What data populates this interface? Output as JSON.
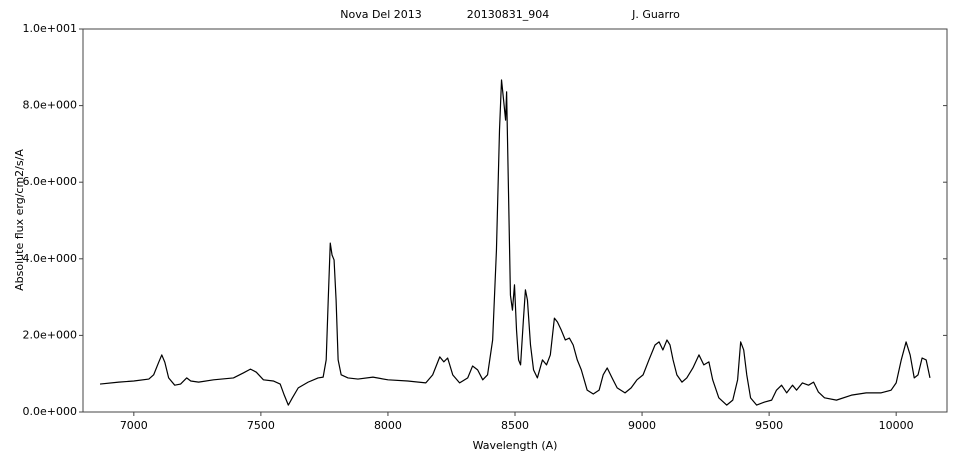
{
  "chart_data": {
    "type": "line",
    "title": "Nova Del 2013",
    "subtitle": "20130831_904",
    "author": "J. Guarro",
    "x_label": "Wavelength (A)",
    "y_label": "Absolute flux erg/cm2/s/A",
    "x": [
      6867,
      6941,
      7000,
      7059,
      7078,
      7098,
      7110,
      7122,
      7137,
      7161,
      7184,
      7208,
      7224,
      7255,
      7314,
      7392,
      7431,
      7459,
      7482,
      7510,
      7549,
      7576,
      7592,
      7608,
      7624,
      7647,
      7686,
      7725,
      7745,
      7757,
      7765,
      7773,
      7780,
      7788,
      7796,
      7804,
      7816,
      7843,
      7882,
      7941,
      8000,
      8078,
      8149,
      8176,
      8204,
      8220,
      8235,
      8255,
      8282,
      8314,
      8333,
      8353,
      8373,
      8392,
      8412,
      8427,
      8439,
      8447,
      8455,
      8463,
      8467,
      8475,
      8482,
      8490,
      8498,
      8506,
      8514,
      8522,
      8533,
      8541,
      8549,
      8561,
      8573,
      8588,
      8608,
      8624,
      8639,
      8655,
      8667,
      8682,
      8698,
      8714,
      8729,
      8745,
      8761,
      8784,
      8808,
      8831,
      8847,
      8863,
      8882,
      8902,
      8933,
      8957,
      8980,
      9004,
      9027,
      9051,
      9067,
      9082,
      9098,
      9110,
      9122,
      9137,
      9157,
      9176,
      9200,
      9224,
      9243,
      9263,
      9278,
      9302,
      9333,
      9357,
      9376,
      9388,
      9400,
      9412,
      9427,
      9451,
      9482,
      9510,
      9529,
      9549,
      9569,
      9592,
      9608,
      9631,
      9655,
      9675,
      9694,
      9718,
      9765,
      9824,
      9882,
      9941,
      9980,
      10000,
      10020,
      10039,
      10055,
      10071,
      10086,
      10102,
      10118,
      10133
    ],
    "series": [
      {
        "name": "spectrum",
        "color": "#000000",
        "values": [
          0.73,
          0.78,
          0.81,
          0.86,
          0.97,
          1.3,
          1.49,
          1.3,
          0.89,
          0.7,
          0.73,
          0.89,
          0.81,
          0.78,
          0.84,
          0.89,
          1.02,
          1.12,
          1.04,
          0.84,
          0.81,
          0.73,
          0.44,
          0.18,
          0.37,
          0.63,
          0.78,
          0.89,
          0.91,
          1.36,
          2.92,
          4.41,
          4.1,
          3.97,
          2.92,
          1.36,
          0.97,
          0.89,
          0.86,
          0.91,
          0.84,
          0.81,
          0.76,
          0.97,
          1.44,
          1.31,
          1.41,
          0.97,
          0.76,
          0.89,
          1.2,
          1.1,
          0.84,
          0.97,
          1.88,
          4.23,
          7.36,
          8.67,
          8.15,
          7.62,
          8.36,
          5.54,
          3.05,
          2.66,
          3.32,
          2.14,
          1.36,
          1.23,
          2.4,
          3.19,
          2.92,
          1.75,
          1.1,
          0.89,
          1.36,
          1.23,
          1.49,
          2.45,
          2.35,
          2.14,
          1.88,
          1.93,
          1.75,
          1.36,
          1.1,
          0.57,
          0.47,
          0.57,
          0.97,
          1.15,
          0.89,
          0.63,
          0.5,
          0.63,
          0.84,
          0.97,
          1.36,
          1.75,
          1.83,
          1.62,
          1.88,
          1.75,
          1.36,
          0.97,
          0.78,
          0.89,
          1.15,
          1.49,
          1.23,
          1.31,
          0.84,
          0.37,
          0.18,
          0.31,
          0.84,
          1.83,
          1.62,
          0.97,
          0.37,
          0.18,
          0.26,
          0.31,
          0.57,
          0.7,
          0.5,
          0.7,
          0.57,
          0.76,
          0.7,
          0.78,
          0.52,
          0.37,
          0.31,
          0.44,
          0.5,
          0.5,
          0.57,
          0.76,
          1.36,
          1.83,
          1.49,
          0.89,
          0.97,
          1.41,
          1.36,
          0.89
        ]
      }
    ],
    "xlim": [
      6800,
      10200
    ],
    "xticks": [
      7000,
      7500,
      8000,
      8500,
      9000,
      9500,
      10000
    ],
    "ylim": [
      0,
      10
    ],
    "yticks": [
      {
        "value": 0,
        "label": "0.0e+000"
      },
      {
        "value": 2,
        "label": "2.0e+000"
      },
      {
        "value": 4,
        "label": "4.0e+000"
      },
      {
        "value": 6,
        "label": "6.0e+000"
      },
      {
        "value": 8,
        "label": "8.0e+000"
      },
      {
        "value": 10,
        "label": "1.0e+001"
      }
    ],
    "grid": false
  }
}
